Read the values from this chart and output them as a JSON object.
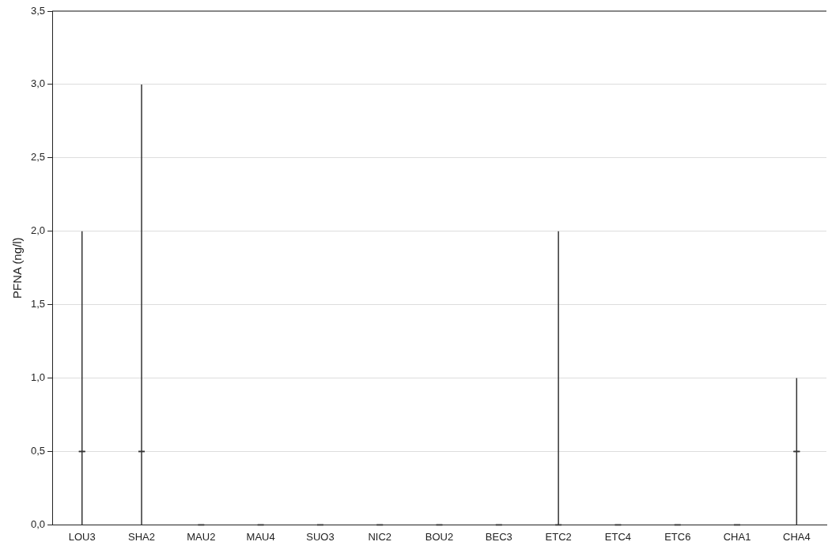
{
  "chart_data": {
    "type": "box",
    "ylabel": "PFNA (ng/l)",
    "color": "#333333",
    "categories": [
      "LOU3",
      "SHA2",
      "MAU2",
      "MAU4",
      "SUO3",
      "NIC2",
      "BOU2",
      "BEC3",
      "ETC2",
      "ETC4",
      "ETC6",
      "CHA1",
      "CHA4"
    ],
    "boxes": [
      {
        "low": 0,
        "q1": 0.5,
        "median": 0.5,
        "q3": 0.5,
        "high": 2
      },
      {
        "low": 0,
        "q1": 0.5,
        "median": 0.5,
        "q3": 0.5,
        "high": 3
      },
      {
        "low": 0,
        "q1": 0,
        "median": 0,
        "q3": 0,
        "high": 0
      },
      {
        "low": 0,
        "q1": 0,
        "median": 0,
        "q3": 0,
        "high": 0
      },
      {
        "low": 0,
        "q1": 0,
        "median": 0,
        "q3": 0,
        "high": 0
      },
      {
        "low": 0,
        "q1": 0,
        "median": 0,
        "q3": 0,
        "high": 0
      },
      {
        "low": 0,
        "q1": 0,
        "median": 0,
        "q3": 0,
        "high": 0
      },
      {
        "low": 0,
        "q1": 0,
        "median": 0,
        "q3": 0,
        "high": 0
      },
      {
        "low": 0,
        "q1": 0,
        "median": 0,
        "q3": 0,
        "high": 2
      },
      {
        "low": 0,
        "q1": 0,
        "median": 0,
        "q3": 0,
        "high": 0
      },
      {
        "low": 0,
        "q1": 0,
        "median": 0,
        "q3": 0,
        "high": 0
      },
      {
        "low": 0,
        "q1": 0,
        "median": 0,
        "q3": 0,
        "high": 0
      },
      {
        "low": 0,
        "q1": 0.5,
        "median": 0.5,
        "q3": 0.5,
        "high": 1
      }
    ],
    "ylim": [
      0,
      3.5
    ],
    "yticks": [
      {
        "value": 0,
        "label": "0,0"
      },
      {
        "value": 0.5,
        "label": "0,5"
      },
      {
        "value": 1,
        "label": "1,0"
      },
      {
        "value": 1.5,
        "label": "1,5"
      },
      {
        "value": 2,
        "label": "2,0"
      },
      {
        "value": 2.5,
        "label": "2,5"
      },
      {
        "value": 3,
        "label": "3,0"
      },
      {
        "value": 3.5,
        "label": "3,5"
      }
    ],
    "grid": "y"
  }
}
